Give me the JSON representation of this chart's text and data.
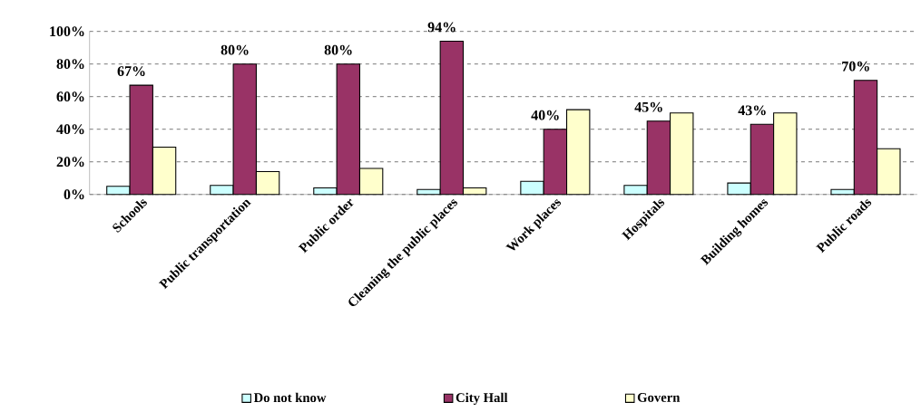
{
  "chart_data": {
    "type": "bar",
    "categories": [
      "Schools",
      "Public transportation",
      "Public order",
      "Cleaning the public places",
      "Work places",
      "Hospitals",
      "Building homes",
      "Public roads"
    ],
    "series": [
      {
        "name": "Do not know",
        "color": "#ccffff",
        "values": [
          5,
          5.5,
          4,
          3,
          8,
          5.5,
          7,
          3
        ]
      },
      {
        "name": "City Hall",
        "color": "#993366",
        "values": [
          67,
          80,
          80,
          94,
          40,
          45,
          43,
          70
        ],
        "value_labels": [
          "67%",
          "80%",
          "80%",
          "94%",
          "40%",
          "45%",
          "43%",
          "70%"
        ]
      },
      {
        "name": "Govern",
        "color": "#ffffcc",
        "values": [
          29,
          14,
          16,
          4,
          52,
          50,
          50,
          28
        ]
      }
    ],
    "ylim": [
      0,
      100
    ],
    "yticks": [
      {
        "value": 0,
        "label": "0%"
      },
      {
        "value": 20,
        "label": "20%"
      },
      {
        "value": 40,
        "label": "40%"
      },
      {
        "value": 60,
        "label": "60%"
      },
      {
        "value": 80,
        "label": "80%"
      },
      {
        "value": 100,
        "label": "100%"
      }
    ],
    "grid": "y",
    "legend": "bottom"
  }
}
